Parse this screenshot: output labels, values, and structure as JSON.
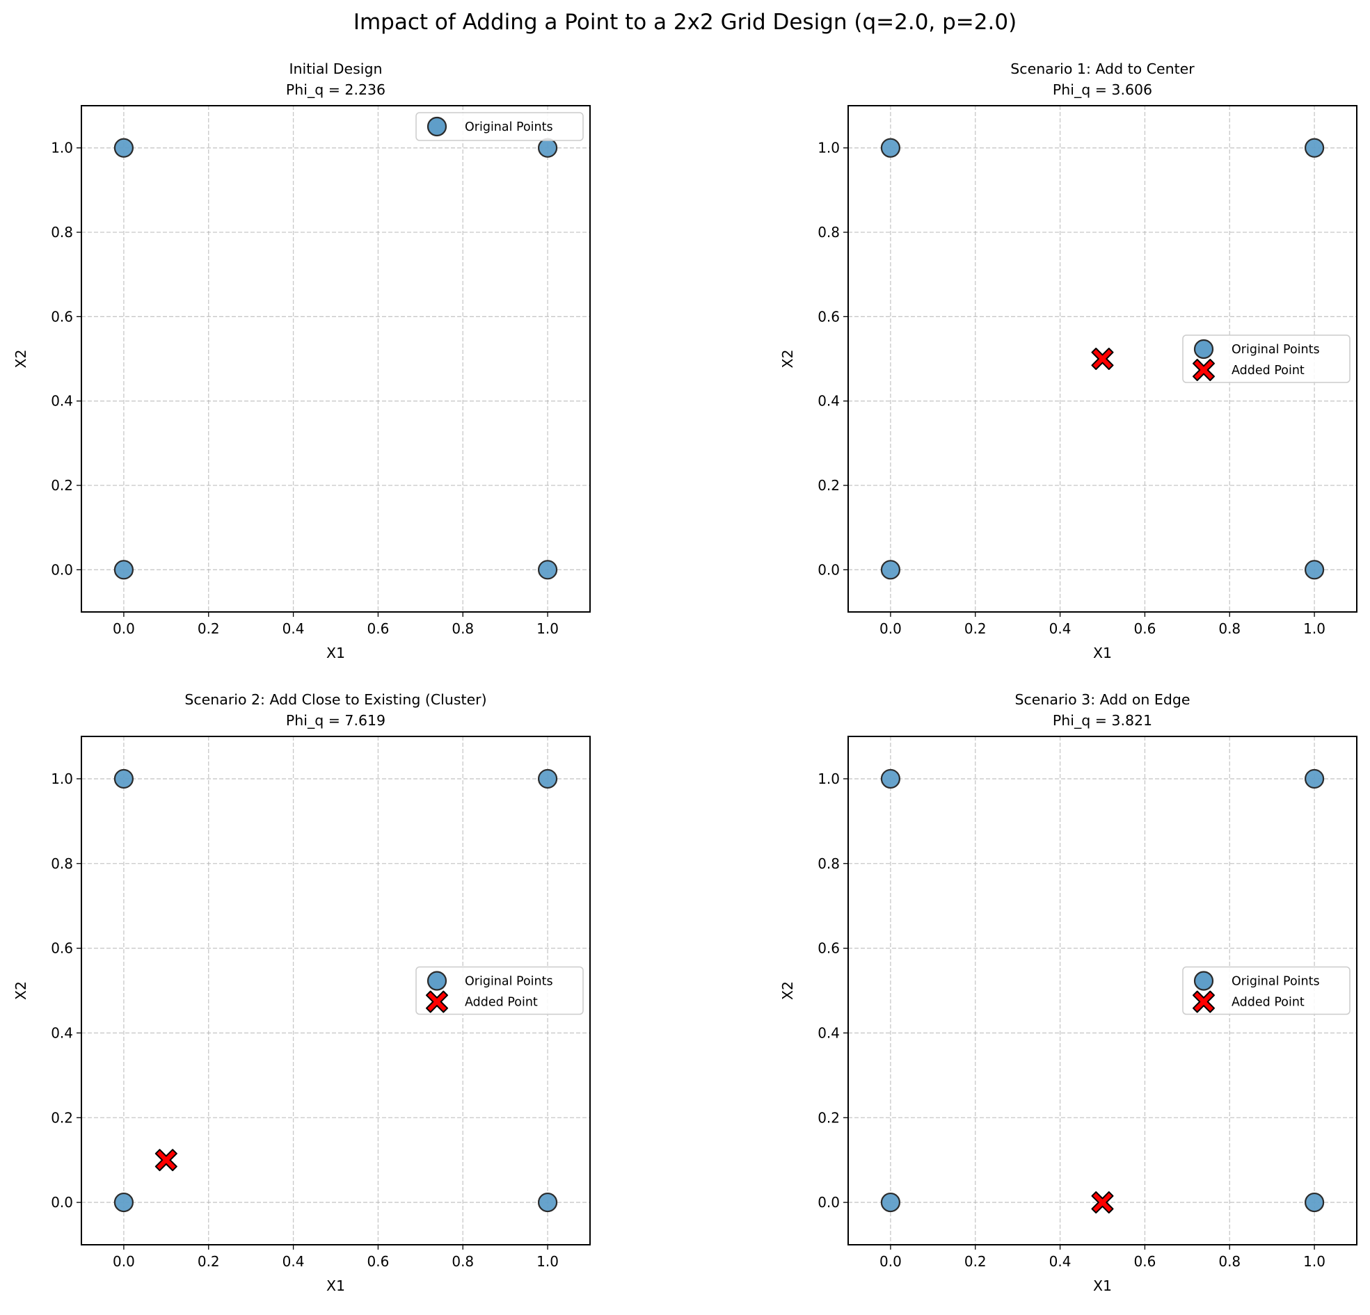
{
  "suptitle": "Impact of Adding a Point to a 2x2 Grid Design (q=2.0, p=2.0)",
  "chart_data": [
    {
      "type": "scatter",
      "title": "Initial Design",
      "subtitle": "Phi_q = 2.236",
      "xlabel": "X1",
      "ylabel": "X2",
      "xlim": [
        -0.1,
        1.1
      ],
      "ylim": [
        -0.1,
        1.1
      ],
      "xticks": [
        "0.0",
        "0.2",
        "0.4",
        "0.6",
        "0.8",
        "1.0"
      ],
      "yticks": [
        "0.0",
        "0.2",
        "0.4",
        "0.6",
        "0.8",
        "1.0"
      ],
      "grid": true,
      "legend_position": "upper-right",
      "series": [
        {
          "name": "Original Points",
          "marker": "circle",
          "color": "#5f9ec9",
          "points": [
            [
              0,
              0
            ],
            [
              0,
              1
            ],
            [
              1,
              0
            ],
            [
              1,
              1
            ]
          ]
        }
      ]
    },
    {
      "type": "scatter",
      "title": "Scenario 1: Add to Center",
      "subtitle": "Phi_q = 3.606",
      "xlabel": "X1",
      "ylabel": "X2",
      "xlim": [
        -0.1,
        1.1
      ],
      "ylim": [
        -0.1,
        1.1
      ],
      "xticks": [
        "0.0",
        "0.2",
        "0.4",
        "0.6",
        "0.8",
        "1.0"
      ],
      "yticks": [
        "0.0",
        "0.2",
        "0.4",
        "0.6",
        "0.8",
        "1.0"
      ],
      "grid": true,
      "legend_position": "center-right",
      "series": [
        {
          "name": "Original Points",
          "marker": "circle",
          "color": "#5f9ec9",
          "points": [
            [
              0,
              0
            ],
            [
              0,
              1
            ],
            [
              1,
              0
            ],
            [
              1,
              1
            ]
          ]
        },
        {
          "name": "Added Point",
          "marker": "x-filled",
          "color": "#ff0000",
          "points": [
            [
              0.5,
              0.5
            ]
          ]
        }
      ]
    },
    {
      "type": "scatter",
      "title": "Scenario 2: Add Close to Existing (Cluster)",
      "subtitle": "Phi_q = 7.619",
      "xlabel": "X1",
      "ylabel": "X2",
      "xlim": [
        -0.1,
        1.1
      ],
      "ylim": [
        -0.1,
        1.1
      ],
      "xticks": [
        "0.0",
        "0.2",
        "0.4",
        "0.6",
        "0.8",
        "1.0"
      ],
      "yticks": [
        "0.0",
        "0.2",
        "0.4",
        "0.6",
        "0.8",
        "1.0"
      ],
      "grid": true,
      "legend_position": "center-right",
      "series": [
        {
          "name": "Original Points",
          "marker": "circle",
          "color": "#5f9ec9",
          "points": [
            [
              0,
              0
            ],
            [
              0,
              1
            ],
            [
              1,
              0
            ],
            [
              1,
              1
            ]
          ]
        },
        {
          "name": "Added Point",
          "marker": "x-filled",
          "color": "#ff0000",
          "points": [
            [
              0.1,
              0.1
            ]
          ]
        }
      ]
    },
    {
      "type": "scatter",
      "title": "Scenario 3: Add on Edge",
      "subtitle": "Phi_q = 3.821",
      "xlabel": "X1",
      "ylabel": "X2",
      "xlim": [
        -0.1,
        1.1
      ],
      "ylim": [
        -0.1,
        1.1
      ],
      "xticks": [
        "0.0",
        "0.2",
        "0.4",
        "0.6",
        "0.8",
        "1.0"
      ],
      "yticks": [
        "0.0",
        "0.2",
        "0.4",
        "0.6",
        "0.8",
        "1.0"
      ],
      "grid": true,
      "legend_position": "center-right",
      "series": [
        {
          "name": "Original Points",
          "marker": "circle",
          "color": "#5f9ec9",
          "points": [
            [
              0,
              0
            ],
            [
              0,
              1
            ],
            [
              1,
              0
            ],
            [
              1,
              1
            ]
          ]
        },
        {
          "name": "Added Point",
          "marker": "x-filled",
          "color": "#ff0000",
          "points": [
            [
              0.5,
              0
            ]
          ]
        }
      ]
    }
  ]
}
